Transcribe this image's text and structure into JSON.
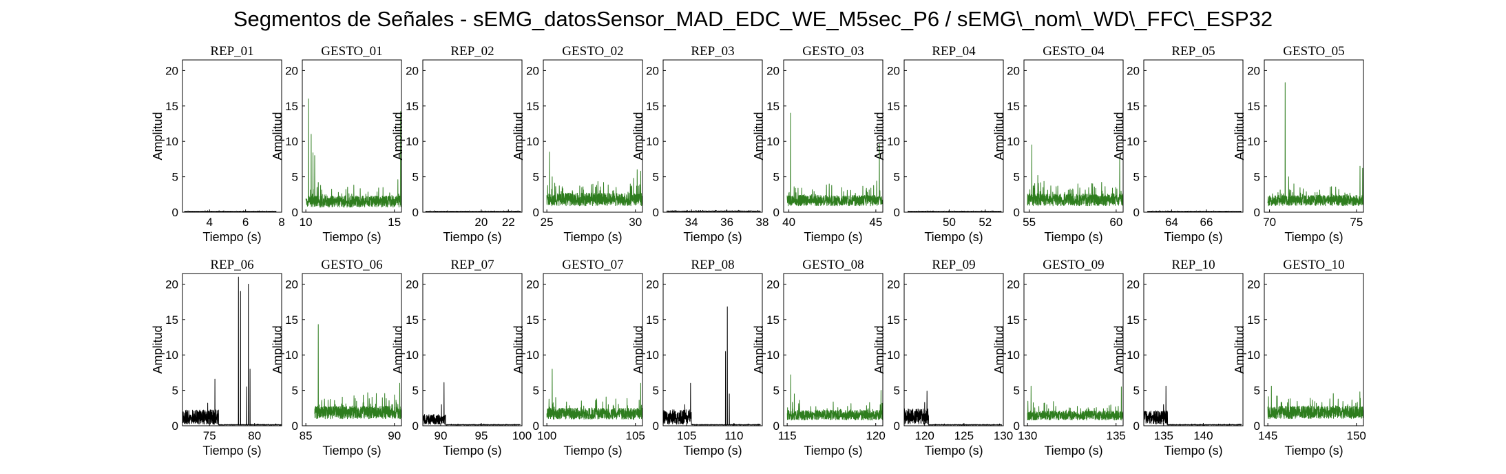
{
  "figure": {
    "title": "Segmentos de Señales - sEMG_datosSensor_MAD_EDC_WE_M5sec_P6 / sEMG\\_nom\\_WD\\_FFC\\_ESP32"
  },
  "colors": {
    "rep": "#000000",
    "gesto": "#2e7d1e",
    "axes": "#000000",
    "background": "#ffffff"
  },
  "chart_data": [
    {
      "type": "line",
      "title": "REP_01",
      "xlabel": "Tiempo (s)",
      "ylabel": "Amplitud",
      "xlim": [
        2.5,
        8
      ],
      "ylim": [
        0,
        21.5
      ],
      "xticks": [
        4,
        6,
        8
      ],
      "yticks": [
        0,
        5,
        10,
        15,
        20
      ],
      "series": [
        {
          "name": "",
          "color": "#000000",
          "x": [
            2.6,
            7.7
          ],
          "baseline": 0.1,
          "noise": 0.05,
          "peaks": []
        }
      ]
    },
    {
      "type": "line",
      "title": "GESTO_01",
      "xlabel": "Tiempo (s)",
      "ylabel": "Amplitud",
      "xlim": [
        9.8,
        15.4
      ],
      "ylim": [
        0,
        21.5
      ],
      "xticks": [
        10,
        15
      ],
      "yticks": [
        0,
        5,
        10,
        15,
        20
      ],
      "series": [
        {
          "name": "",
          "color": "#2e7d1e",
          "x": [
            10.0,
            15.4
          ],
          "baseline": 0.7,
          "noise": 1.6,
          "peaks": [
            [
              10.15,
              16.0
            ],
            [
              10.3,
              11.0
            ],
            [
              10.4,
              8.4
            ],
            [
              10.5,
              8.0
            ],
            [
              10.7,
              4.2
            ],
            [
              15.35,
              14.2
            ],
            [
              15.2,
              4.6
            ]
          ]
        }
      ]
    },
    {
      "type": "line",
      "title": "REP_02",
      "xlabel": "Tiempo (s)",
      "ylabel": "Amplitud",
      "xlim": [
        15.7,
        23
      ],
      "ylim": [
        0,
        21.5
      ],
      "xticks": [
        20,
        22
      ],
      "yticks": [
        0,
        5,
        10,
        15,
        20
      ],
      "series": [
        {
          "name": "",
          "color": "#000000",
          "x": [
            15.9,
            22.9
          ],
          "baseline": 0.1,
          "noise": 0.05,
          "peaks": []
        }
      ]
    },
    {
      "type": "line",
      "title": "GESTO_02",
      "xlabel": "Tiempo (s)",
      "ylabel": "Amplitud",
      "xlim": [
        24.8,
        30.4
      ],
      "ylim": [
        0,
        21.5
      ],
      "xticks": [
        25,
        30
      ],
      "yticks": [
        0,
        5,
        10,
        15,
        20
      ],
      "series": [
        {
          "name": "",
          "color": "#2e7d1e",
          "x": [
            25.0,
            30.4
          ],
          "baseline": 0.9,
          "noise": 1.8,
          "peaks": [
            [
              25.15,
              8.5
            ],
            [
              25.3,
              5.0
            ],
            [
              25.45,
              4.1
            ],
            [
              28.2,
              4.2
            ],
            [
              30.1,
              6.0
            ],
            [
              30.3,
              5.8
            ],
            [
              29.9,
              4.8
            ]
          ]
        }
      ]
    },
    {
      "type": "line",
      "title": "REP_03",
      "xlabel": "Tiempo (s)",
      "ylabel": "Amplitud",
      "xlim": [
        32.4,
        38
      ],
      "ylim": [
        0,
        21.5
      ],
      "xticks": [
        34,
        36,
        38
      ],
      "yticks": [
        0,
        5,
        10,
        15,
        20
      ],
      "series": [
        {
          "name": "",
          "color": "#000000",
          "x": [
            32.6,
            37.9
          ],
          "baseline": 0.1,
          "noise": 0.08,
          "peaks": []
        }
      ]
    },
    {
      "type": "line",
      "title": "GESTO_03",
      "xlabel": "Tiempo (s)",
      "ylabel": "Amplitud",
      "xlim": [
        39.7,
        45.4
      ],
      "ylim": [
        0,
        21.5
      ],
      "xticks": [
        40,
        45
      ],
      "yticks": [
        0,
        5,
        10,
        15,
        20
      ],
      "series": [
        {
          "name": "",
          "color": "#2e7d1e",
          "x": [
            39.9,
            45.4
          ],
          "baseline": 0.9,
          "noise": 1.5,
          "peaks": [
            [
              40.1,
              14.0
            ],
            [
              40.3,
              3.6
            ],
            [
              45.2,
              9.6
            ],
            [
              45.05,
              4.4
            ]
          ]
        }
      ]
    },
    {
      "type": "line",
      "title": "REP_04",
      "xlabel": "Tiempo (s)",
      "ylabel": "Amplitud",
      "xlim": [
        47.5,
        53
      ],
      "ylim": [
        0,
        21.5
      ],
      "xticks": [
        50,
        52
      ],
      "yticks": [
        0,
        5,
        10,
        15,
        20
      ],
      "series": [
        {
          "name": "",
          "color": "#000000",
          "x": [
            47.7,
            52.9
          ],
          "baseline": 0.1,
          "noise": 0.05,
          "peaks": []
        }
      ]
    },
    {
      "type": "line",
      "title": "GESTO_04",
      "xlabel": "Tiempo (s)",
      "ylabel": "Amplitud",
      "xlim": [
        54.7,
        60.4
      ],
      "ylim": [
        0,
        21.5
      ],
      "xticks": [
        55,
        60
      ],
      "yticks": [
        0,
        5,
        10,
        15,
        20
      ],
      "series": [
        {
          "name": "",
          "color": "#2e7d1e",
          "x": [
            54.9,
            60.4
          ],
          "baseline": 0.9,
          "noise": 1.7,
          "peaks": [
            [
              55.15,
              9.5
            ],
            [
              55.5,
              5.2
            ],
            [
              57.8,
              4.0
            ],
            [
              60.2,
              7.8
            ]
          ]
        }
      ]
    },
    {
      "type": "line",
      "title": "REP_05",
      "xlabel": "Tiempo (s)",
      "ylabel": "Amplitud",
      "xlim": [
        62.4,
        68.1
      ],
      "ylim": [
        0,
        21.5
      ],
      "xticks": [
        64,
        66
      ],
      "yticks": [
        0,
        5,
        10,
        15,
        20
      ],
      "series": [
        {
          "name": "",
          "color": "#000000",
          "x": [
            62.6,
            68.0
          ],
          "baseline": 0.1,
          "noise": 0.05,
          "peaks": []
        }
      ]
    },
    {
      "type": "line",
      "title": "GESTO_05",
      "xlabel": "Tiempo (s)",
      "ylabel": "Amplitud",
      "xlim": [
        69.7,
        75.4
      ],
      "ylim": [
        0,
        21.5
      ],
      "xticks": [
        70,
        75
      ],
      "yticks": [
        0,
        5,
        10,
        15,
        20
      ],
      "series": [
        {
          "name": "",
          "color": "#2e7d1e",
          "x": [
            69.9,
            75.4
          ],
          "baseline": 0.9,
          "noise": 1.5,
          "peaks": [
            [
              70.9,
              18.3
            ],
            [
              71.1,
              5.0
            ],
            [
              71.4,
              4.0
            ],
            [
              75.2,
              6.5
            ],
            [
              75.35,
              6.2
            ]
          ]
        }
      ]
    },
    {
      "type": "line",
      "title": "REP_06",
      "xlabel": "Tiempo (s)",
      "ylabel": "Amplitud",
      "xlim": [
        72,
        83
      ],
      "ylim": [
        0,
        21.5
      ],
      "xticks": [
        75,
        80
      ],
      "yticks": [
        0,
        5,
        10,
        15,
        20
      ],
      "series": [
        {
          "name": "",
          "color": "#000000",
          "x": [
            72.0,
            83.0
          ],
          "baseline": 0.1,
          "noise": 0.08,
          "burst": [
            72.0,
            76.0,
            1.3,
            1.6
          ],
          "peaks": [
            [
              75.6,
              6.6
            ],
            [
              74.8,
              3.2
            ],
            [
              78.2,
              21.0
            ],
            [
              78.45,
              19.0
            ],
            [
              79.3,
              20.0
            ],
            [
              79.1,
              5.5
            ],
            [
              79.5,
              8.0
            ]
          ]
        }
      ]
    },
    {
      "type": "line",
      "title": "GESTO_06",
      "xlabel": "Tiempo (s)",
      "ylabel": "Amplitud",
      "xlim": [
        84.8,
        90.4
      ],
      "ylim": [
        0,
        21.5
      ],
      "xticks": [
        85,
        90
      ],
      "yticks": [
        0,
        5,
        10,
        15,
        20
      ],
      "series": [
        {
          "name": "",
          "color": "#2e7d1e",
          "x": [
            85.5,
            90.4
          ],
          "baseline": 1.0,
          "noise": 1.8,
          "peaks": [
            [
              85.7,
              14.3
            ],
            [
              85.9,
              3.6
            ],
            [
              90.3,
              6.0
            ]
          ]
        }
      ]
    },
    {
      "type": "line",
      "title": "REP_07",
      "xlabel": "Tiempo (s)",
      "ylabel": "Amplitud",
      "xlim": [
        87.8,
        100
      ],
      "ylim": [
        0,
        21.5
      ],
      "xticks": [
        90,
        95,
        100
      ],
      "yticks": [
        0,
        5,
        10,
        15,
        20
      ],
      "series": [
        {
          "name": "",
          "color": "#000000",
          "x": [
            87.8,
            99.8
          ],
          "baseline": 0.1,
          "noise": 0.08,
          "burst": [
            87.8,
            90.6,
            1.0,
            1.4
          ],
          "peaks": [
            [
              90.4,
              6.1
            ],
            [
              90.1,
              3.0
            ]
          ]
        }
      ]
    },
    {
      "type": "line",
      "title": "GESTO_07",
      "xlabel": "Tiempo (s)",
      "ylabel": "Amplitud",
      "xlim": [
        99.8,
        105.4
      ],
      "ylim": [
        0,
        21.5
      ],
      "xticks": [
        100,
        105
      ],
      "yticks": [
        0,
        5,
        10,
        15,
        20
      ],
      "series": [
        {
          "name": "",
          "color": "#2e7d1e",
          "x": [
            100.0,
            105.4
          ],
          "baseline": 0.9,
          "noise": 1.6,
          "peaks": [
            [
              100.3,
              8.0
            ],
            [
              100.5,
              4.0
            ],
            [
              102.8,
              3.8
            ],
            [
              105.3,
              6.0
            ]
          ]
        }
      ]
    },
    {
      "type": "line",
      "title": "REP_08",
      "xlabel": "Tiempo (s)",
      "ylabel": "Amplitud",
      "xlim": [
        102.5,
        113
      ],
      "ylim": [
        0,
        21.5
      ],
      "xticks": [
        105,
        110
      ],
      "yticks": [
        0,
        5,
        10,
        15,
        20
      ],
      "series": [
        {
          "name": "",
          "color": "#000000",
          "x": [
            102.5,
            112.8
          ],
          "baseline": 0.1,
          "noise": 0.08,
          "burst": [
            102.5,
            105.5,
            1.3,
            1.6
          ],
          "peaks": [
            [
              105.4,
              6.0
            ],
            [
              104.8,
              3.0
            ],
            [
              109.3,
              16.8
            ],
            [
              109.1,
              10.5
            ],
            [
              109.5,
              4.5
            ]
          ]
        }
      ]
    },
    {
      "type": "line",
      "title": "GESTO_08",
      "xlabel": "Tiempo (s)",
      "ylabel": "Amplitud",
      "xlim": [
        114.8,
        120.4
      ],
      "ylim": [
        0,
        21.5
      ],
      "xticks": [
        115,
        120
      ],
      "yticks": [
        0,
        5,
        10,
        15,
        20
      ],
      "series": [
        {
          "name": "",
          "color": "#2e7d1e",
          "x": [
            115.0,
            120.4
          ],
          "baseline": 0.8,
          "noise": 1.4,
          "peaks": [
            [
              115.2,
              7.2
            ],
            [
              115.4,
              4.5
            ],
            [
              115.7,
              3.6
            ],
            [
              120.3,
              5.0
            ]
          ]
        }
      ]
    },
    {
      "type": "line",
      "title": "REP_09",
      "xlabel": "Tiempo (s)",
      "ylabel": "Amplitud",
      "xlim": [
        117.4,
        130
      ],
      "ylim": [
        0,
        21.5
      ],
      "xticks": [
        120,
        125,
        130
      ],
      "yticks": [
        0,
        5,
        10,
        15,
        20
      ],
      "series": [
        {
          "name": "",
          "color": "#000000",
          "x": [
            117.4,
            129.8
          ],
          "baseline": 0.1,
          "noise": 0.08,
          "burst": [
            117.4,
            120.5,
            1.4,
            1.6
          ],
          "peaks": [
            [
              120.3,
              4.9
            ],
            [
              120.0,
              3.3
            ]
          ]
        }
      ]
    },
    {
      "type": "line",
      "title": "GESTO_09",
      "xlabel": "Tiempo (s)",
      "ylabel": "Amplitud",
      "xlim": [
        129.8,
        135.4
      ],
      "ylim": [
        0,
        21.5
      ],
      "xticks": [
        130,
        135
      ],
      "yticks": [
        0,
        5,
        10,
        15,
        20
      ],
      "series": [
        {
          "name": "",
          "color": "#2e7d1e",
          "x": [
            130.0,
            135.4
          ],
          "baseline": 0.8,
          "noise": 1.3,
          "peaks": [
            [
              130.2,
              5.6
            ],
            [
              135.3,
              5.5
            ]
          ]
        }
      ]
    },
    {
      "type": "line",
      "title": "REP_10",
      "xlabel": "Tiempo (s)",
      "ylabel": "Amplitud",
      "xlim": [
        132.5,
        145
      ],
      "ylim": [
        0,
        21.5
      ],
      "xticks": [
        135,
        140
      ],
      "yticks": [
        0,
        5,
        10,
        15,
        20
      ],
      "series": [
        {
          "name": "",
          "color": "#000000",
          "x": [
            132.5,
            144.8
          ],
          "baseline": 0.1,
          "noise": 0.08,
          "burst": [
            132.5,
            135.5,
            1.3,
            1.5
          ],
          "peaks": [
            [
              135.3,
              5.6
            ],
            [
              135.0,
              3.0
            ]
          ]
        }
      ]
    },
    {
      "type": "line",
      "title": "GESTO_10",
      "xlabel": "Tiempo (s)",
      "ylabel": "Amplitud",
      "xlim": [
        144.8,
        150.4
      ],
      "ylim": [
        0,
        21.5
      ],
      "xticks": [
        145,
        150
      ],
      "yticks": [
        0,
        5,
        10,
        15,
        20
      ],
      "series": [
        {
          "name": "",
          "color": "#2e7d1e",
          "x": [
            145.0,
            150.4
          ],
          "baseline": 1.0,
          "noise": 1.8,
          "peaks": [
            [
              145.2,
              5.6
            ],
            [
              145.5,
              4.2
            ],
            [
              148.5,
              3.8
            ],
            [
              150.2,
              4.8
            ]
          ]
        }
      ]
    }
  ]
}
